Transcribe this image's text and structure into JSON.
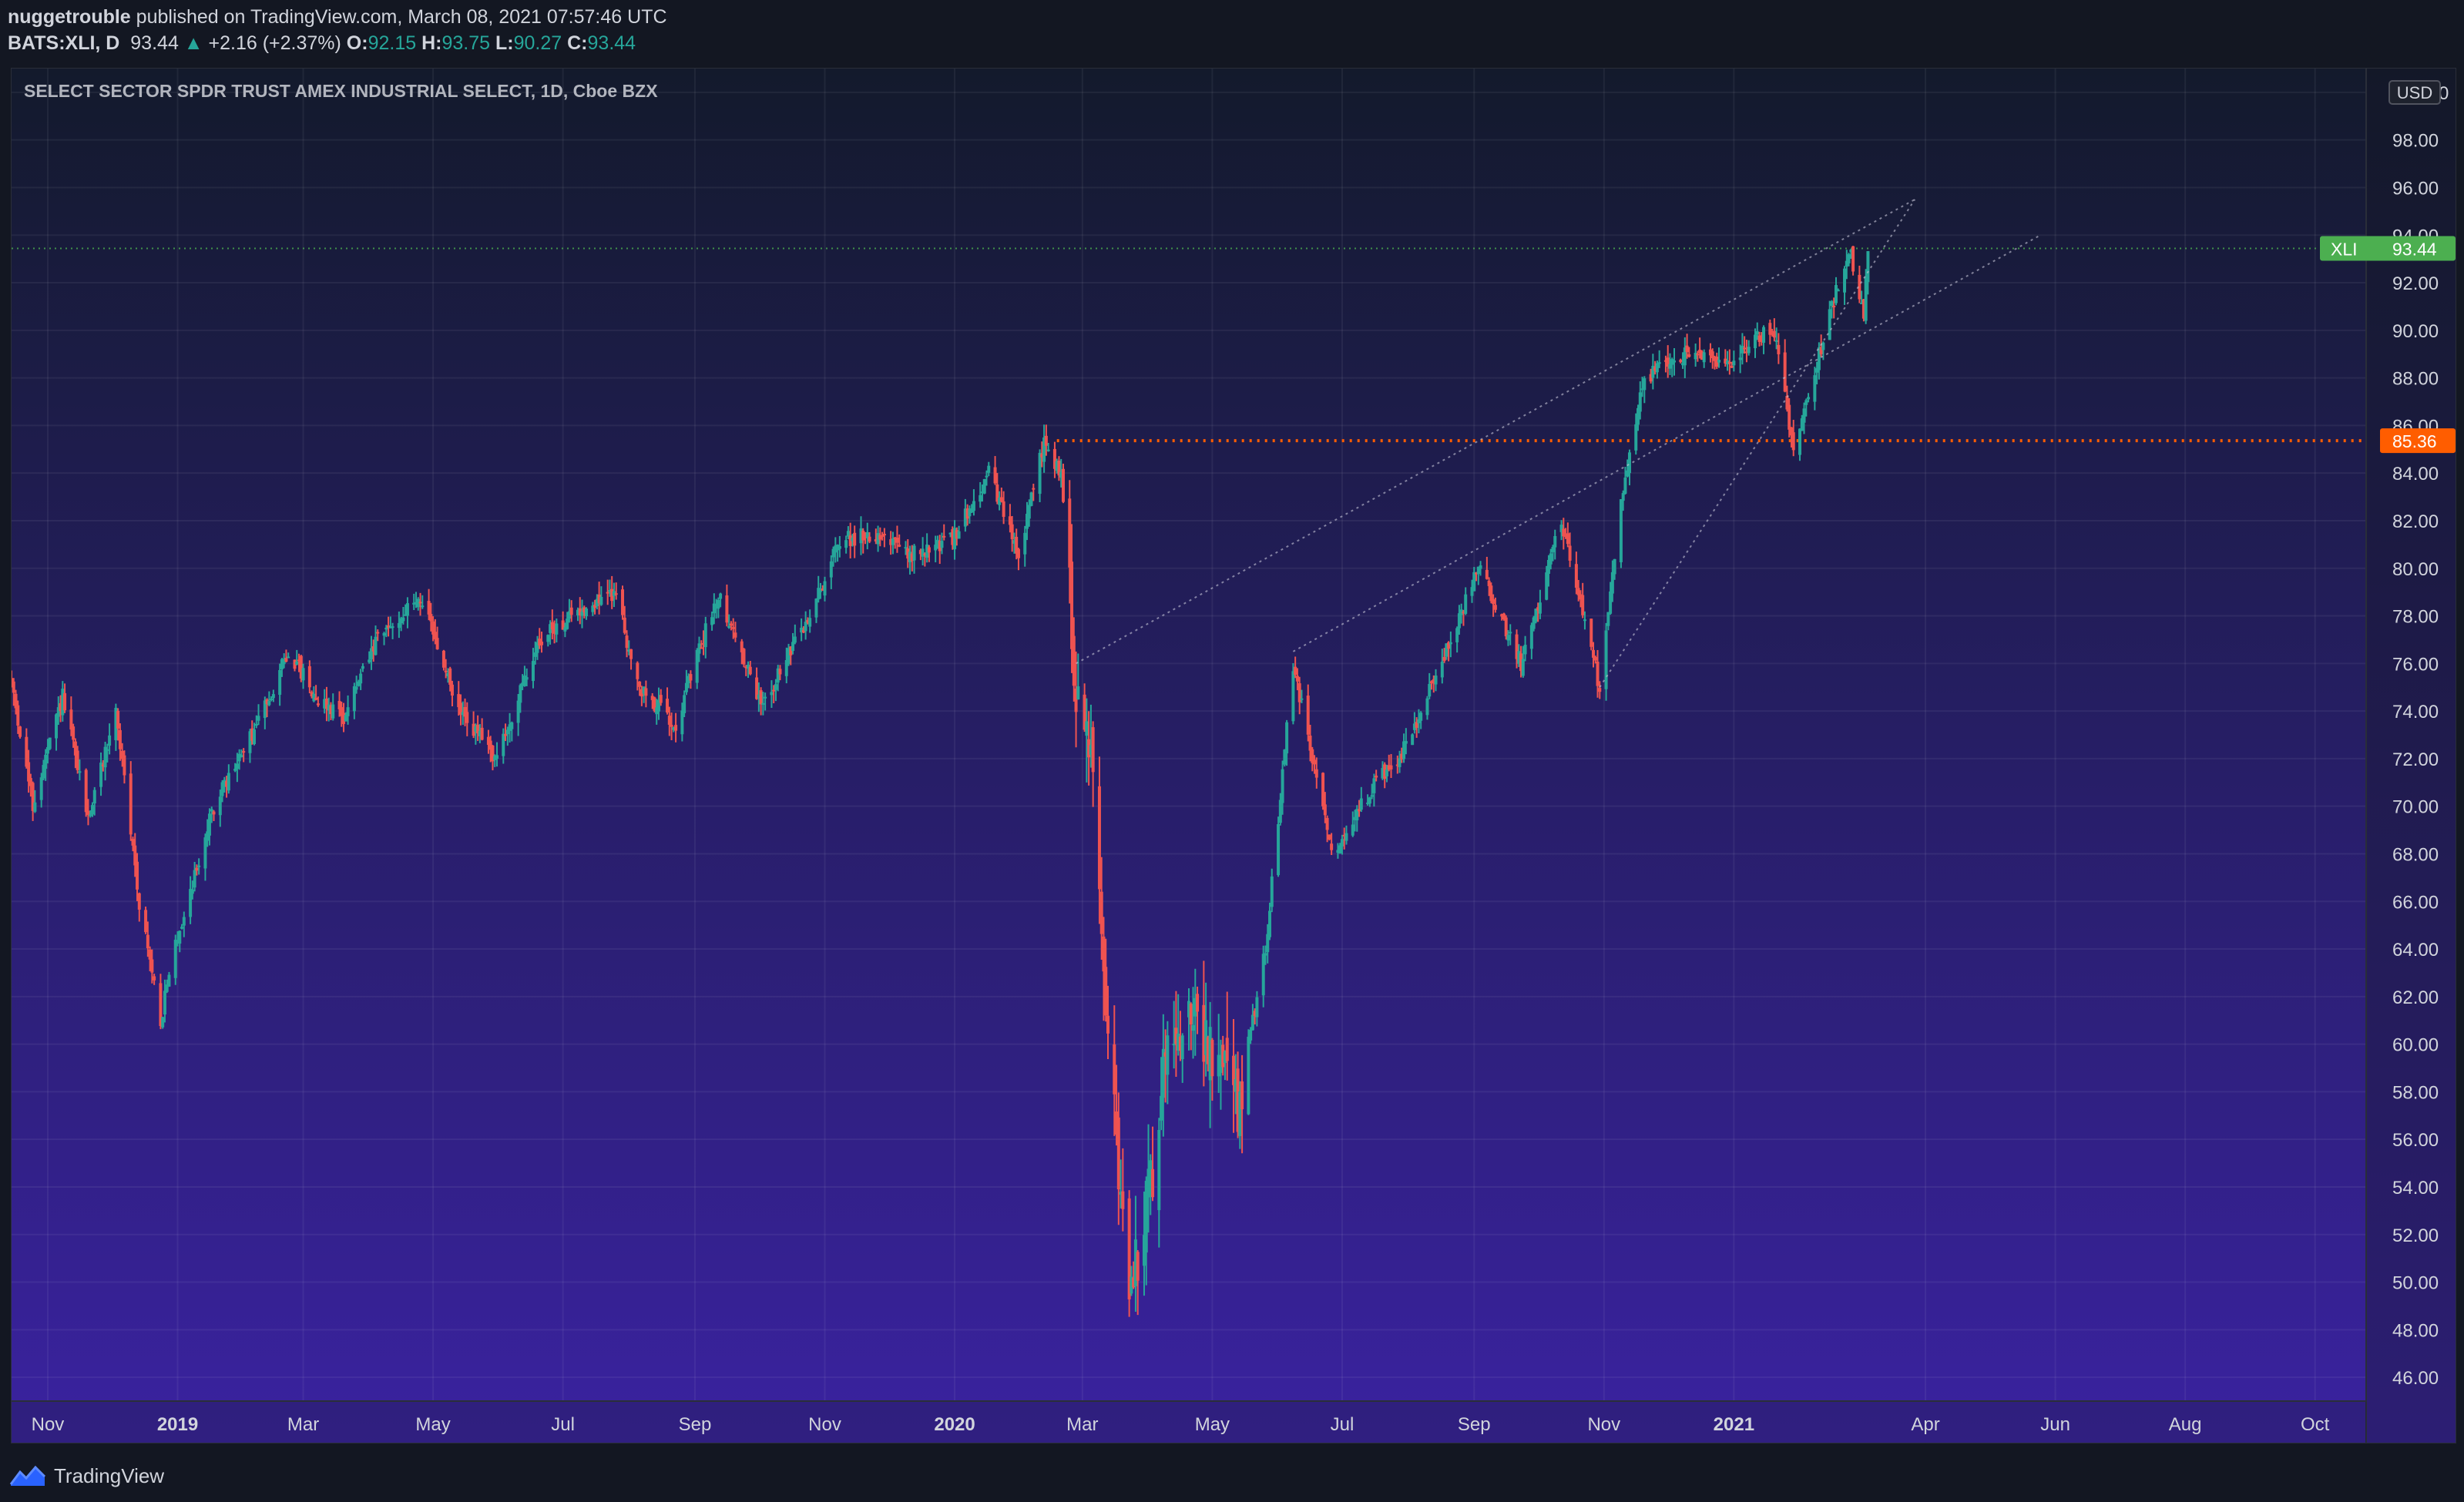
{
  "header": {
    "user": "nuggetrouble",
    "published": "published on TradingView.com, March 08, 2021 07:57:46 UTC",
    "symbol": "BATS:XLI, D",
    "last": "93.44",
    "change_arrow": "▲",
    "change": "+2.16 (+2.37%)",
    "o_label": "O:",
    "o": "92.15",
    "h_label": "H:",
    "h": "93.75",
    "l_label": "L:",
    "l": "90.27",
    "c_label": "C:",
    "c": "93.44"
  },
  "footer": {
    "brand": "TradingView",
    "icon": "tradingview-logo-icon"
  },
  "colors": {
    "bg_top": "#131a2c",
    "bg_bottom": "#3a22a0",
    "up": "#26a69a",
    "down": "#ef5350",
    "last_tag": "#4caf50",
    "level_tag": "#ff5d00"
  },
  "chart_data": {
    "type": "candlestick",
    "title": "SELECT SECTOR SPDR TRUST AMEX INDUSTRIAL SELECT, 1D, Cboe BZX",
    "currency": "USD",
    "ylim": [
      45.0,
      101.0
    ],
    "y_ticks": [
      "46.00",
      "48.00",
      "50.00",
      "52.00",
      "54.00",
      "56.00",
      "58.00",
      "60.00",
      "62.00",
      "64.00",
      "66.00",
      "68.00",
      "70.00",
      "72.00",
      "74.00",
      "76.00",
      "78.00",
      "80.00",
      "82.00",
      "84.00",
      "86.00",
      "88.00",
      "90.00",
      "92.00",
      "94.00",
      "96.00",
      "98.00",
      "100.00"
    ],
    "x_range": [
      "2018-10-15",
      "2021-10-25"
    ],
    "x_ticks": [
      {
        "date": "2018-11-01",
        "label": "Nov"
      },
      {
        "date": "2019-01-01",
        "label": "2019"
      },
      {
        "date": "2019-03-01",
        "label": "Mar"
      },
      {
        "date": "2019-05-01",
        "label": "May"
      },
      {
        "date": "2019-07-01",
        "label": "Jul"
      },
      {
        "date": "2019-09-01",
        "label": "Sep"
      },
      {
        "date": "2019-11-01",
        "label": "Nov"
      },
      {
        "date": "2020-01-01",
        "label": "2020"
      },
      {
        "date": "2020-03-01",
        "label": "Mar"
      },
      {
        "date": "2020-05-01",
        "label": "May"
      },
      {
        "date": "2020-07-01",
        "label": "Jul"
      },
      {
        "date": "2020-09-01",
        "label": "Sep"
      },
      {
        "date": "2020-11-01",
        "label": "Nov"
      },
      {
        "date": "2021-01-01",
        "label": "2021"
      },
      {
        "date": "2021-04-01",
        "label": "Apr"
      },
      {
        "date": "2021-06-01",
        "label": "Jun"
      },
      {
        "date": "2021-08-01",
        "label": "Aug"
      },
      {
        "date": "2021-10-01",
        "label": "Oct"
      }
    ],
    "price_path": [
      [
        "2018-10-15",
        75.2
      ],
      [
        "2018-10-25",
        70.0
      ],
      [
        "2018-11-08",
        74.6
      ],
      [
        "2018-11-20",
        69.5
      ],
      [
        "2018-12-03",
        74.0
      ],
      [
        "2018-12-14",
        66.0
      ],
      [
        "2018-12-24",
        61.0
      ],
      [
        "2018-12-31",
        64.2
      ],
      [
        "2019-01-18",
        70.0
      ],
      [
        "2019-02-05",
        73.0
      ],
      [
        "2019-02-22",
        76.5
      ],
      [
        "2019-03-08",
        74.5
      ],
      [
        "2019-03-20",
        73.8
      ],
      [
        "2019-04-05",
        77.0
      ],
      [
        "2019-04-25",
        78.8
      ],
      [
        "2019-05-13",
        74.0
      ],
      [
        "2019-05-31",
        72.0
      ],
      [
        "2019-06-20",
        77.0
      ],
      [
        "2019-07-10",
        78.3
      ],
      [
        "2019-07-26",
        79.0
      ],
      [
        "2019-08-05",
        75.0
      ],
      [
        "2019-08-23",
        73.5
      ],
      [
        "2019-09-12",
        79.0
      ],
      [
        "2019-10-02",
        74.2
      ],
      [
        "2019-10-25",
        78.0
      ],
      [
        "2019-11-08",
        81.2
      ],
      [
        "2019-11-29",
        81.5
      ],
      [
        "2019-12-10",
        80.5
      ],
      [
        "2019-12-31",
        81.2
      ],
      [
        "2020-01-17",
        84.0
      ],
      [
        "2020-01-31",
        80.5
      ],
      [
        "2020-02-12",
        85.3
      ],
      [
        "2020-02-20",
        84.0
      ],
      [
        "2020-02-27",
        75.0
      ],
      [
        "2020-03-06",
        72.0
      ],
      [
        "2020-03-12",
        62.0
      ],
      [
        "2020-03-23",
        49.0
      ],
      [
        "2020-04-02",
        54.0
      ],
      [
        "2020-04-09",
        60.0
      ],
      [
        "2020-04-21",
        61.5
      ],
      [
        "2020-04-30",
        59.5
      ],
      [
        "2020-05-13",
        57.5
      ],
      [
        "2020-05-26",
        64.0
      ],
      [
        "2020-06-08",
        76.0
      ],
      [
        "2020-06-26",
        68.0
      ],
      [
        "2020-07-13",
        70.5
      ],
      [
        "2020-07-31",
        72.5
      ],
      [
        "2020-08-14",
        75.5
      ],
      [
        "2020-09-03",
        80.0
      ],
      [
        "2020-09-23",
        76.0
      ],
      [
        "2020-10-12",
        82.0
      ],
      [
        "2020-10-30",
        75.0
      ],
      [
        "2020-11-09",
        83.0
      ],
      [
        "2020-11-20",
        88.0
      ],
      [
        "2020-12-10",
        89.0
      ],
      [
        "2020-12-31",
        88.5
      ],
      [
        "2021-01-08",
        89.5
      ],
      [
        "2021-01-20",
        90.0
      ],
      [
        "2021-01-29",
        85.0
      ],
      [
        "2021-02-10",
        89.0
      ],
      [
        "2021-02-24",
        93.5
      ],
      [
        "2021-03-03",
        90.5
      ],
      [
        "2021-03-05",
        93.44
      ]
    ],
    "last_price": {
      "value": 93.44,
      "label": "XLI",
      "price_label": "93.44",
      "line_style": "dotted"
    },
    "horizontal_level": {
      "value": 85.36,
      "label": "85.36",
      "from": "2020-02-18"
    },
    "trendlines": [
      {
        "name": "upper-channel",
        "from": [
          "2020-02-27",
          76.0
        ],
        "to": [
          "2021-03-27",
          95.5
        ]
      },
      {
        "name": "lower-channel",
        "from": [
          "2020-06-08",
          76.5
        ],
        "to": [
          "2021-05-25",
          94.0
        ]
      },
      {
        "name": "steep-support",
        "from": [
          "2020-10-30",
          75.0
        ],
        "to": [
          "2021-03-27",
          95.5
        ]
      }
    ]
  }
}
